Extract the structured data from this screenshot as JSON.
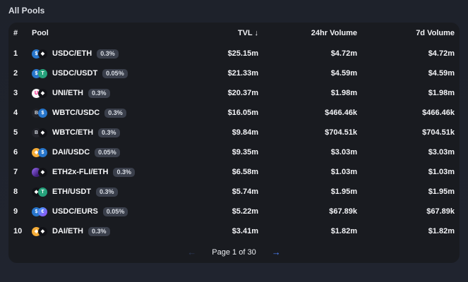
{
  "page": {
    "title": "All Pools"
  },
  "colors": {
    "page_bg": "#1e222b",
    "card_bg": "#191b20",
    "badge_bg": "#3a3f4b",
    "accent_blue": "#4c82fb",
    "disabled_arrow": "#2c3a57"
  },
  "tokens": {
    "USDC": {
      "glyph": "$",
      "css": "background:#2775ca;color:#ffffff"
    },
    "ETH": {
      "glyph": "◆",
      "css": "background:#111217;color:#ffffff"
    },
    "USDT": {
      "glyph": "T",
      "css": "background:#26a17b;color:#ffffff"
    },
    "UNI": {
      "glyph": "U",
      "css": "background:#f7f8fa;color:#ff007a"
    },
    "WBTC": {
      "glyph": "B",
      "css": "background:#23242b;color:#d8dce4"
    },
    "DAI": {
      "glyph": "◈",
      "css": "background:#f5ac37;color:#ffffff"
    },
    "ETH2x-FLI": {
      "glyph": "",
      "css": "background:linear-gradient(135deg,#9b6cf5 0%,#3e1d7a 70%);color:#ffffff"
    },
    "EURS": {
      "glyph": "€",
      "css": "background:linear-gradient(135deg,#36a0f5 0%,#8a5cf6 80%);color:#ffffff"
    }
  },
  "table": {
    "columns": {
      "rank": "#",
      "pool": "Pool",
      "tvl": "TVL ↓",
      "vol24": "24hr Volume",
      "vol7": "7d Volume"
    },
    "rows": [
      {
        "rank": "1",
        "pair": "USDC/ETH",
        "fee": "0.3%",
        "tvl": "$25.15m",
        "vol24": "$4.72m",
        "vol7": "$4.72m"
      },
      {
        "rank": "2",
        "pair": "USDC/USDT",
        "fee": "0.05%",
        "tvl": "$21.33m",
        "vol24": "$4.59m",
        "vol7": "$4.59m"
      },
      {
        "rank": "3",
        "pair": "UNI/ETH",
        "fee": "0.3%",
        "tvl": "$20.37m",
        "vol24": "$1.98m",
        "vol7": "$1.98m"
      },
      {
        "rank": "4",
        "pair": "WBTC/USDC",
        "fee": "0.3%",
        "tvl": "$16.05m",
        "vol24": "$466.46k",
        "vol7": "$466.46k"
      },
      {
        "rank": "5",
        "pair": "WBTC/ETH",
        "fee": "0.3%",
        "tvl": "$9.84m",
        "vol24": "$704.51k",
        "vol7": "$704.51k"
      },
      {
        "rank": "6",
        "pair": "DAI/USDC",
        "fee": "0.05%",
        "tvl": "$9.35m",
        "vol24": "$3.03m",
        "vol7": "$3.03m"
      },
      {
        "rank": "7",
        "pair": "ETH2x-FLI/ETH",
        "fee": "0.3%",
        "tvl": "$6.58m",
        "vol24": "$1.03m",
        "vol7": "$1.03m"
      },
      {
        "rank": "8",
        "pair": "ETH/USDT",
        "fee": "0.3%",
        "tvl": "$5.74m",
        "vol24": "$1.95m",
        "vol7": "$1.95m"
      },
      {
        "rank": "9",
        "pair": "USDC/EURS",
        "fee": "0.05%",
        "tvl": "$5.22m",
        "vol24": "$67.89k",
        "vol7": "$67.89k"
      },
      {
        "rank": "10",
        "pair": "DAI/ETH",
        "fee": "0.3%",
        "tvl": "$3.41m",
        "vol24": "$1.82m",
        "vol7": "$1.82m"
      }
    ]
  },
  "pagination": {
    "prev": "←",
    "label": "Page 1 of 30",
    "next": "→"
  }
}
